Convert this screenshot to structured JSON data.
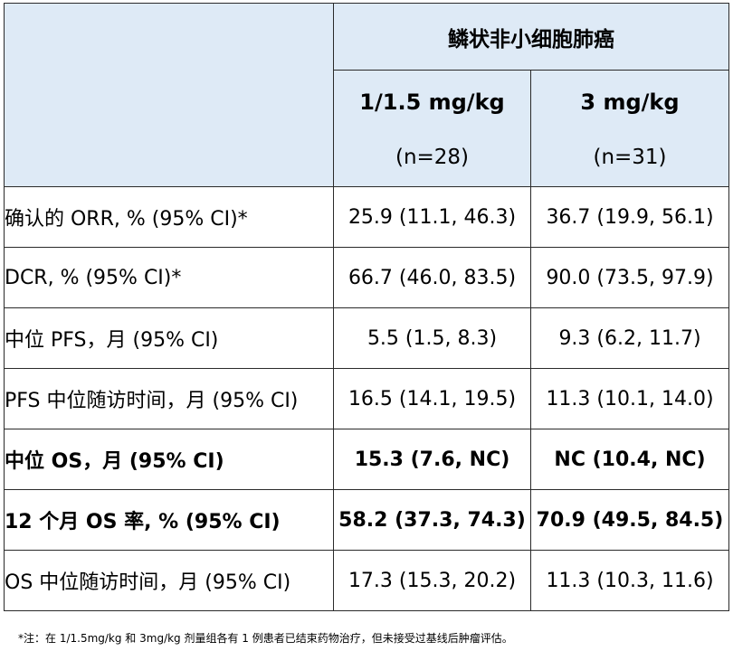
{
  "table": {
    "group_header": "鳞状非小细胞肺癌",
    "doses": [
      {
        "label": "1/1.5 mg/kg",
        "n": "(n=28)"
      },
      {
        "label": "3 mg/kg",
        "n": "(n=31)"
      }
    ],
    "rows": [
      {
        "label": "确认的 ORR, % (95% CI)*",
        "v1": "25.9 (11.1, 46.3)",
        "v2": "36.7 (19.9, 56.1)"
      },
      {
        "label": "DCR, % (95% CI)*",
        "v1": "66.7 (46.0, 83.5)",
        "v2": "90.0 (73.5, 97.9)"
      },
      {
        "label": "中位 PFS，月 (95% CI)",
        "v1": "5.5 (1.5, 8.3)",
        "v2": "9.3 (6.2, 11.7)"
      },
      {
        "label": "PFS 中位随访时间，月 (95% CI)",
        "v1": "16.5 (14.1, 19.5)",
        "v2": "11.3 (10.1, 14.0)"
      },
      {
        "label": "中位 OS，月 (95% CI)",
        "v1": "15.3 (7.6, NC)",
        "v2": "NC (10.4, NC)"
      },
      {
        "label": "12 个月 OS 率, % (95% CI)",
        "v1": "58.2 (37.3, 74.3)",
        "v2": "70.9 (49.5, 84.5)"
      },
      {
        "label": "OS 中位随访时间，月 (95% CI)",
        "v1": "17.3 (15.3, 20.2)",
        "v2": "11.3 (10.3, 11.6)"
      }
    ]
  },
  "footnote": "*注：在 1/1.5mg/kg 和 3mg/kg 剂量组各有 1 例患者已结束药物治疗，但未接受过基线后肿瘤评估。",
  "colors": {
    "header_bg": "#deeaf6",
    "border": "#2a2a2a"
  }
}
